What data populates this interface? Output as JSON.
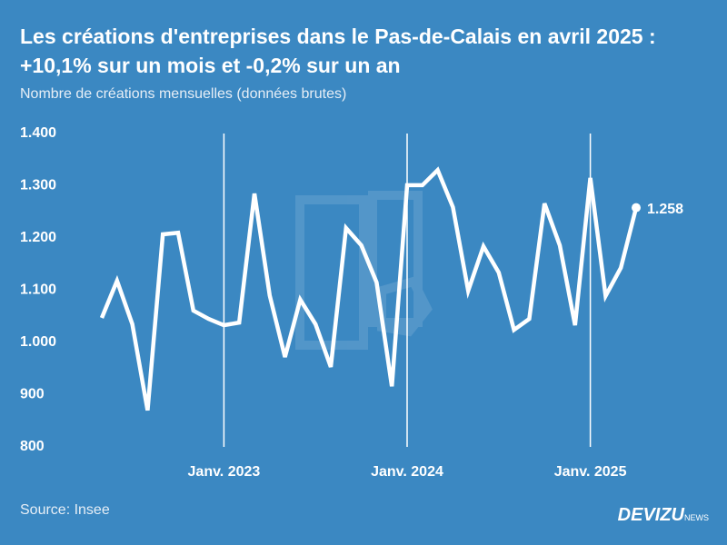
{
  "chart_data": {
    "type": "line",
    "title": "Les créations d'entreprises dans le Pas-de-Calais en avril 2025 : +10,1% sur un mois et -0,2% sur un an",
    "subtitle": "Nombre de créations mensuelles (données brutes)",
    "source": "Source: Insee",
    "brand": "DEVIZU",
    "brand_suffix": "NEWS",
    "categories": [
      null,
      null,
      null,
      null,
      null,
      null,
      null,
      null,
      "Janv. 2023",
      null,
      null,
      null,
      null,
      null,
      null,
      null,
      null,
      null,
      null,
      null,
      "Janv. 2024",
      null,
      null,
      null,
      null,
      null,
      null,
      null,
      null,
      null,
      null,
      null,
      "Janv. 2025",
      null,
      null,
      null
    ],
    "values": [
      1047,
      1118,
      1035,
      870,
      1207,
      1210,
      1061,
      1045,
      1033,
      1038,
      1285,
      1090,
      972,
      1082,
      1035,
      953,
      1219,
      1186,
      1115,
      916,
      1301,
      1301,
      1330,
      1259,
      1099,
      1184,
      1134,
      1024,
      1045,
      1266,
      1186,
      1033,
      1315,
      1089,
      1143,
      1258
    ],
    "value_labels": [
      null,
      null,
      null,
      null,
      null,
      null,
      null,
      null,
      null,
      null,
      null,
      null,
      null,
      null,
      null,
      null,
      null,
      null,
      null,
      null,
      null,
      null,
      null,
      null,
      null,
      null,
      null,
      null,
      null,
      null,
      null,
      null,
      null,
      null,
      null,
      "1.258"
    ],
    "color": "#ffffff",
    "ylim": [
      800,
      1400
    ],
    "yticks": [
      800,
      900,
      {
        "value": 1000,
        "label": "1.000"
      },
      {
        "value": 1100,
        "label": "1.100"
      },
      {
        "value": 1200,
        "label": "1.200"
      },
      {
        "value": 1300,
        "label": "1.300"
      },
      {
        "value": 1400,
        "label": "1.400"
      }
    ],
    "x_grid": true
  }
}
